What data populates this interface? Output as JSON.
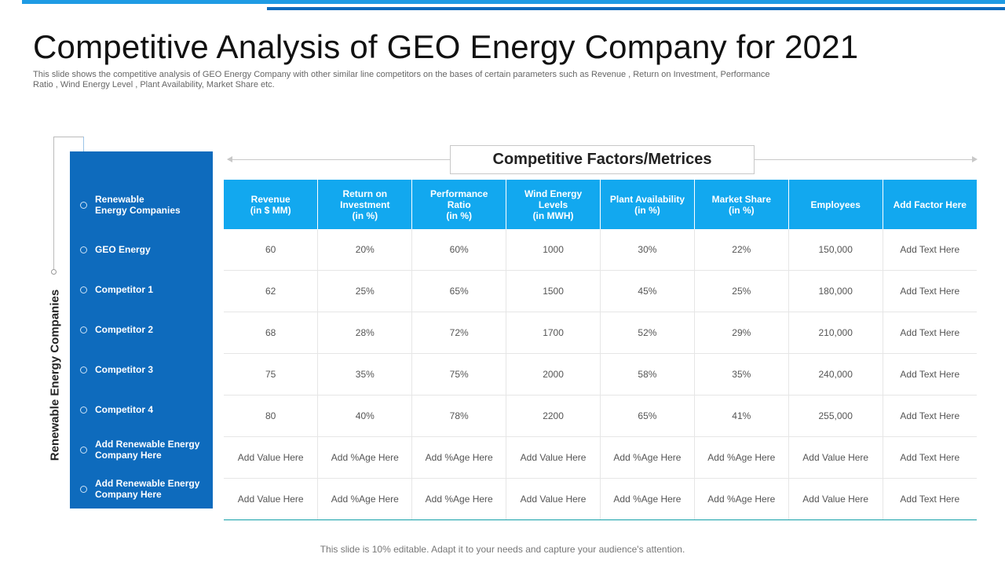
{
  "title": "Competitive Analysis of GEO Energy Company for 2021",
  "subtitle": "This slide shows the competitive analysis of GEO Energy Company with other similar line competitors on the bases of certain parameters such as Revenue , Return on Investment, Performance Ratio , Wind Energy Level , Plant Availability, Market Share etc.",
  "vertical_label": "Renewable Energy Companies",
  "factors_title": "Competitive  Factors/Metrices",
  "companies_header": "Renewable\nEnergy Companies",
  "companies": [
    "GEO Energy",
    "Competitor 1",
    "Competitor 2",
    "Competitor 3",
    "Competitor 4",
    "Add Renewable Energy\nCompany Here",
    "Add Renewable Energy\nCompany Here"
  ],
  "columns": [
    "Revenue\n(in $ MM)",
    "Return on\nInvestment\n(in %)",
    "Performance\nRatio\n(in %)",
    "Wind Energy\nLevels\n(in MWH)",
    "Plant Availability\n(in %)",
    "Market Share\n(in %)",
    "Employees",
    "Add Factor Here"
  ],
  "rows": [
    [
      "60",
      "20%",
      "60%",
      "1000",
      "30%",
      "22%",
      "150,000",
      "Add Text Here"
    ],
    [
      "62",
      "25%",
      "65%",
      "1500",
      "45%",
      "25%",
      "180,000",
      "Add Text Here"
    ],
    [
      "68",
      "28%",
      "72%",
      "1700",
      "52%",
      "29%",
      "210,000",
      "Add Text Here"
    ],
    [
      "75",
      "35%",
      "75%",
      "2000",
      "58%",
      "35%",
      "240,000",
      "Add Text Here"
    ],
    [
      "80",
      "40%",
      "78%",
      "2200",
      "65%",
      "41%",
      "255,000",
      "Add Text Here"
    ],
    [
      "Add Value Here",
      "Add %Age Here",
      "Add %Age Here",
      "Add Value Here",
      "Add %Age Here",
      "Add %Age Here",
      "Add Value Here",
      "Add Text Here"
    ],
    [
      "Add Value Here",
      "Add %Age Here",
      "Add %Age Here",
      "Add Value Here",
      "Add %Age Here",
      "Add %Age Here",
      "Add Value Here",
      "Add Text Here"
    ]
  ],
  "footer": "This slide is 10% editable. Adapt it to your needs and capture your audience's attention.",
  "colors": {
    "panel": "#0e6bbd",
    "header": "#12a8ef",
    "accent_bar": "#1e9be4"
  }
}
